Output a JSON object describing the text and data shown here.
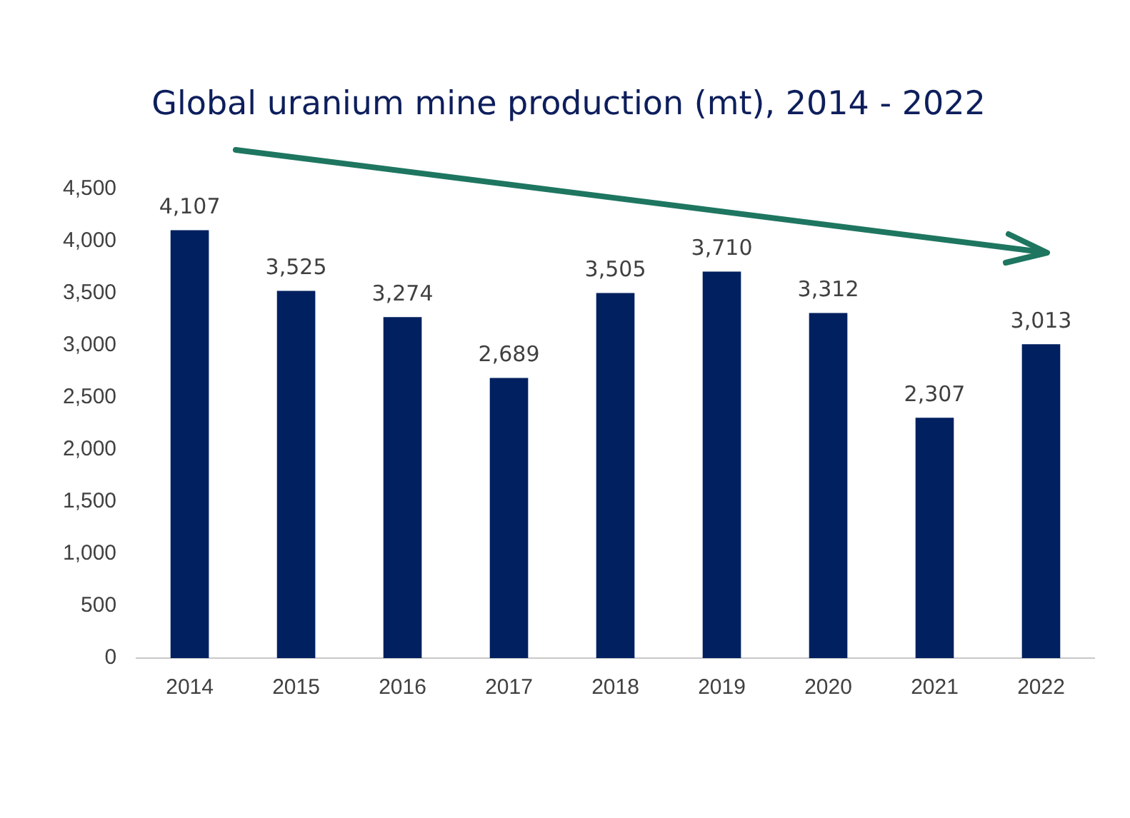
{
  "chart_data": {
    "type": "bar",
    "title": "Global uranium mine production (mt), 2014 - 2022",
    "categories": [
      "2014",
      "2015",
      "2016",
      "2017",
      "2018",
      "2019",
      "2020",
      "2021",
      "2022"
    ],
    "values": [
      4107,
      3525,
      3274,
      2689,
      3505,
      3710,
      3312,
      2307,
      3013
    ],
    "value_labels": [
      "4,107",
      "3,525",
      "3,274",
      "2,689",
      "3,505",
      "3,710",
      "3,312",
      "2,307",
      "3,013"
    ],
    "color": "#002060",
    "ylim": [
      0,
      4500
    ],
    "yticks": [
      0,
      500,
      {
        "value": 1000,
        "label": "1,000"
      },
      {
        "value": 1500,
        "label": "1,500"
      },
      {
        "value": 2000,
        "label": "2,000"
      },
      {
        "value": 2500,
        "label": "2,500"
      },
      {
        "value": 3000,
        "label": "3,000"
      },
      {
        "value": 3500,
        "label": "3,500"
      },
      {
        "value": 4000,
        "label": "4,000"
      },
      {
        "value": 4500,
        "label": "4,500"
      }
    ],
    "grid": false,
    "legend": false
  }
}
